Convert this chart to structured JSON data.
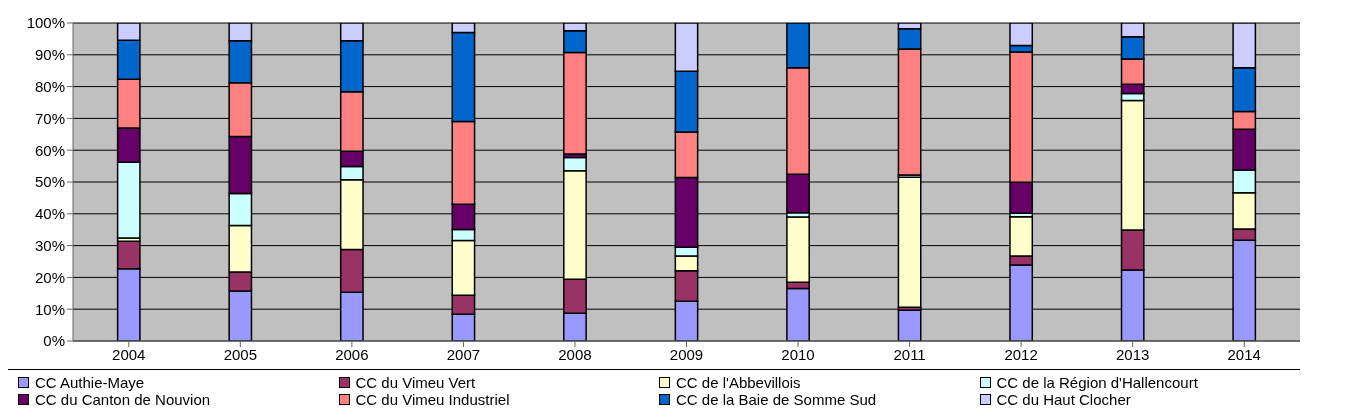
{
  "chart_data": {
    "type": "bar",
    "stacked": true,
    "categories": [
      "2004",
      "2005",
      "2006",
      "2007",
      "2008",
      "2009",
      "2010",
      "2011",
      "2012",
      "2013",
      "2014"
    ],
    "series": [
      {
        "name": "CC Authie-Maye",
        "color": "#9999ff",
        "values": [
          22.7,
          15.7,
          15.3,
          8.4,
          8.7,
          12.5,
          16.5,
          9.7,
          23.9,
          22.3,
          31.7
        ]
      },
      {
        "name": "CC du Vimeu Vert",
        "color": "#993366",
        "values": [
          8.7,
          6.0,
          13.5,
          6.0,
          10.7,
          9.6,
          2.0,
          0.9,
          2.8,
          12.6,
          3.5
        ]
      },
      {
        "name": "CC de l'Abbevillois",
        "color": "#ffffcc",
        "values": [
          1.0,
          14.6,
          21.9,
          17.2,
          34.1,
          4.6,
          20.5,
          40.9,
          12.4,
          40.7,
          11.4
        ]
      },
      {
        "name": "CC de la Région d'Hallencourt",
        "color": "#ccffff",
        "values": [
          23.8,
          10.1,
          4.2,
          3.5,
          4.2,
          2.8,
          1.3,
          0.7,
          1.1,
          2.2,
          7.2
        ]
      },
      {
        "name": "CC du Canton de Nouvion",
        "color": "#660066",
        "values": [
          10.8,
          17.9,
          4.8,
          7.9,
          1.1,
          21.9,
          12.1,
          null,
          9.7,
          2.9,
          12.8
        ]
      },
      {
        "name": "CC du Vimeu Industriel",
        "color": "#ff8080",
        "values": [
          15.3,
          16.9,
          18.7,
          26.0,
          31.9,
          14.3,
          33.5,
          39.6,
          41.0,
          8.0,
          5.6
        ]
      },
      {
        "name": "CC de la Baie de Somme Sud",
        "color": "#0066cc",
        "values": [
          12.3,
          13.2,
          16.0,
          28.0,
          6.9,
          19.1,
          14.1,
          6.4,
          2.0,
          7.0,
          13.7
        ]
      },
      {
        "name": "CC du Haut Clocher",
        "color": "#ccccff",
        "values": [
          5.4,
          5.6,
          5.6,
          3.0,
          2.4,
          15.2,
          null,
          1.8,
          7.1,
          4.3,
          14.1
        ]
      }
    ],
    "ylim": [
      0,
      100
    ],
    "yticks": [
      {
        "value": 0,
        "label": "0%"
      },
      {
        "value": 10,
        "label": "10%"
      },
      {
        "value": 20,
        "label": "20%"
      },
      {
        "value": 30,
        "label": "30%"
      },
      {
        "value": 40,
        "label": "40%"
      },
      {
        "value": 50,
        "label": "50%"
      },
      {
        "value": 60,
        "label": "60%"
      },
      {
        "value": 70,
        "label": "70%"
      },
      {
        "value": 80,
        "label": "80%"
      },
      {
        "value": 90,
        "label": "90%"
      },
      {
        "value": 100,
        "label": "100%"
      }
    ],
    "grid": "y",
    "legend": "bottom"
  }
}
